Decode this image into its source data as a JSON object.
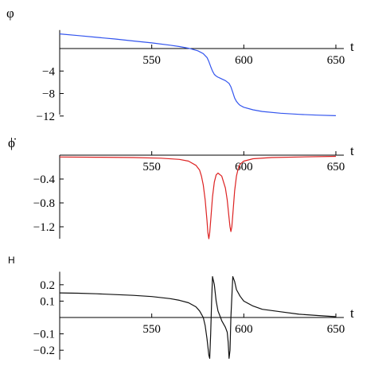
{
  "chart_data": [
    {
      "type": "line",
      "ylabel": "φ",
      "xlabel": "t",
      "xlim": [
        500,
        650
      ],
      "ylim": [
        -12,
        3
      ],
      "xticks": [
        550,
        600,
        650
      ],
      "yticks": [
        -4,
        -8,
        -12
      ],
      "color": "#3355ee",
      "series": [
        {
          "x": [
            500,
            510,
            520,
            530,
            540,
            550,
            560,
            565,
            570,
            575,
            578,
            580,
            581,
            582,
            583,
            584,
            585,
            586,
            587,
            588,
            590,
            592,
            593,
            594,
            595,
            596,
            597,
            598,
            600,
            605,
            610,
            620,
            630,
            640,
            650
          ],
          "y": [
            2.6,
            2.3,
            2.0,
            1.7,
            1.35,
            1.0,
            0.6,
            0.35,
            0.05,
            -0.4,
            -0.9,
            -1.6,
            -2.3,
            -3.2,
            -4.0,
            -4.6,
            -4.9,
            -5.1,
            -5.25,
            -5.4,
            -5.7,
            -6.2,
            -6.8,
            -7.8,
            -8.8,
            -9.4,
            -9.8,
            -10.1,
            -10.45,
            -10.9,
            -11.2,
            -11.5,
            -11.7,
            -11.85,
            -11.95
          ]
        }
      ]
    },
    {
      "type": "line",
      "ylabel": "ϕ̇",
      "xlabel": "t",
      "xlim": [
        500,
        650
      ],
      "ylim": [
        -1.4,
        0
      ],
      "xticks": [
        550,
        600,
        650
      ],
      "yticks": [
        -0.4,
        -0.8,
        -1.2
      ],
      "color": "#dd2222",
      "series": [
        {
          "x": [
            500,
            520,
            540,
            555,
            565,
            570,
            574,
            576,
            577,
            578,
            579,
            580,
            580.5,
            581,
            581.5,
            582,
            583,
            584,
            585,
            586,
            588,
            590,
            591,
            592,
            592.5,
            593,
            593.5,
            594,
            595,
            596,
            597,
            598,
            600,
            605,
            615,
            630,
            650
          ],
          "y": [
            -0.03,
            -0.035,
            -0.04,
            -0.05,
            -0.07,
            -0.1,
            -0.17,
            -0.25,
            -0.35,
            -0.5,
            -0.75,
            -1.1,
            -1.3,
            -1.4,
            -1.3,
            -1.1,
            -0.7,
            -0.45,
            -0.33,
            -0.3,
            -0.35,
            -0.55,
            -0.75,
            -1.05,
            -1.2,
            -1.28,
            -1.2,
            -1.0,
            -0.6,
            -0.35,
            -0.22,
            -0.15,
            -0.1,
            -0.06,
            -0.04,
            -0.03,
            -0.02
          ]
        }
      ]
    },
    {
      "type": "line",
      "ylabel": "H",
      "xlabel": "t",
      "xlim": [
        500,
        650
      ],
      "ylim": [
        -0.25,
        0.27
      ],
      "xticks": [
        550,
        600,
        650
      ],
      "yticks": [
        0.2,
        0.1,
        -0.1,
        -0.2
      ],
      "ytick_labels": [
        "0.2",
        "0.1",
        "−0.1",
        "−0.2"
      ],
      "color": "#111111",
      "series": [
        {
          "x": [
            500,
            510,
            520,
            530,
            540,
            550,
            560,
            565,
            570,
            574,
            576,
            578,
            579,
            580,
            581,
            581.5,
            582,
            582.5,
            583,
            584,
            585,
            586,
            587,
            588,
            589,
            590,
            591,
            591.5,
            592,
            592.5,
            593,
            594,
            595,
            596,
            598,
            600,
            605,
            610,
            620,
            630,
            640,
            650
          ],
          "y": [
            0.15,
            0.148,
            0.145,
            0.14,
            0.135,
            0.128,
            0.115,
            0.105,
            0.09,
            0.065,
            0.04,
            0.0,
            -0.05,
            -0.13,
            -0.23,
            -0.25,
            -0.1,
            0.1,
            0.25,
            0.2,
            0.1,
            0.04,
            0.01,
            -0.02,
            -0.04,
            -0.06,
            -0.09,
            -0.15,
            -0.25,
            -0.2,
            0.0,
            0.25,
            0.22,
            0.17,
            0.13,
            0.1,
            0.07,
            0.05,
            0.035,
            0.02,
            0.012,
            0.005
          ]
        }
      ]
    }
  ]
}
